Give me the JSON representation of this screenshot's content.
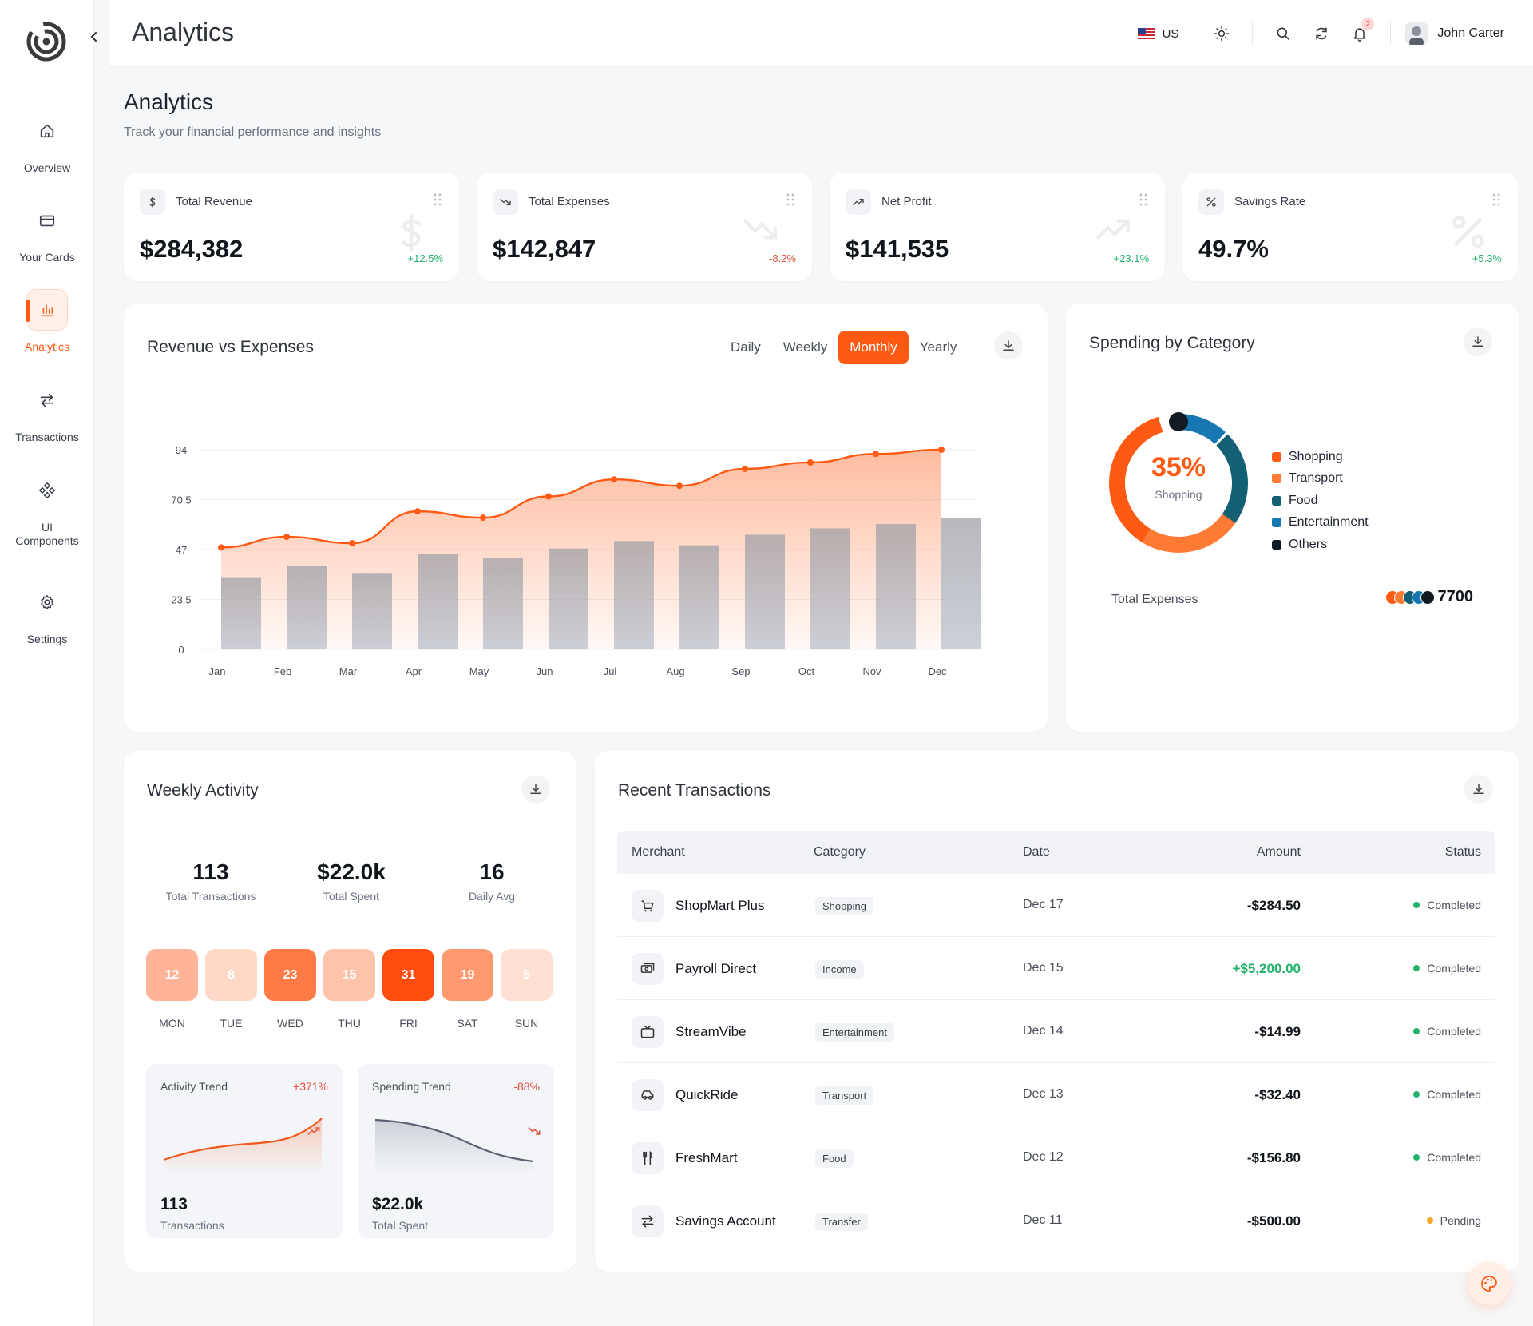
{
  "sidebar": {
    "items": [
      {
        "label": "Overview",
        "icon": "home-icon"
      },
      {
        "label": "Your Cards",
        "icon": "card-icon"
      },
      {
        "label": "Analytics",
        "icon": "bar-chart-icon"
      },
      {
        "label": "Transactions",
        "icon": "swap-icon"
      },
      {
        "label": "UI Components",
        "icon": "components-icon"
      },
      {
        "label": "Settings",
        "icon": "gear-icon"
      }
    ]
  },
  "topbar": {
    "title": "Analytics",
    "language": "US",
    "notifications_count": "2",
    "user_name": "John Carter"
  },
  "page": {
    "title": "Analytics",
    "subtitle": "Track your financial performance and insights"
  },
  "stats": [
    {
      "label": "Total Revenue",
      "value": "$284,382",
      "change": "+12.5%",
      "icon": "$"
    },
    {
      "label": "Total Expenses",
      "value": "$142,847",
      "change": "-8.2%",
      "icon": "trend-down"
    },
    {
      "label": "Net Profit",
      "value": "$141,535",
      "change": "+23.1%",
      "icon": "trend-up"
    },
    {
      "label": "Savings Rate",
      "value": "49.7%",
      "change": "+5.3%",
      "icon": "%"
    }
  ],
  "revenue_chart": {
    "title": "Revenue vs Expenses",
    "tabs": [
      "Daily",
      "Weekly",
      "Monthly",
      "Yearly"
    ],
    "active_tab": "Monthly"
  },
  "chart_data": {
    "type": "bar",
    "title": "Revenue vs Expenses",
    "categories": [
      "Jan",
      "Feb",
      "Mar",
      "Apr",
      "May",
      "Jun",
      "Jul",
      "Aug",
      "Sep",
      "Oct",
      "Nov",
      "Dec"
    ],
    "yticks": [
      "94",
      "70.5",
      "47",
      "23.5",
      "0"
    ],
    "ylim": [
      0,
      94
    ],
    "grid": true,
    "series": [
      {
        "values": [
          48,
          53,
          50,
          65,
          62,
          72,
          80,
          77,
          85,
          88,
          92,
          94
        ],
        "color": "#ff5a14"
      },
      {
        "values": [
          34,
          39.5,
          36,
          45,
          43,
          47.5,
          51,
          49,
          54,
          57,
          59,
          62
        ],
        "color": "#a8abb5"
      }
    ]
  },
  "spending": {
    "title": "Spending by Category",
    "center_value": "35%",
    "center_label": "Shopping",
    "legend": [
      {
        "name": "Shopping",
        "color": "#ff5a14"
      },
      {
        "name": "Transport",
        "color": "#ff7a32"
      },
      {
        "name": "Food",
        "color": "#135f73"
      },
      {
        "name": "Entertainment",
        "color": "#1677b3"
      },
      {
        "name": "Others",
        "color": "#121a22"
      }
    ],
    "total_label": "Total Expenses",
    "total_value": "7700"
  },
  "weekly": {
    "title": "Weekly Activity",
    "stats": [
      {
        "value": "113",
        "label": "Total Transactions"
      },
      {
        "value": "$22.0k",
        "label": "Total Spent"
      },
      {
        "value": "16",
        "label": "Daily Avg"
      }
    ],
    "days": [
      {
        "day": "MON",
        "count": "12",
        "color": "#ffb398"
      },
      {
        "day": "TUE",
        "count": "8",
        "color": "#ffd9c8"
      },
      {
        "day": "WED",
        "count": "23",
        "color": "#ff7b45"
      },
      {
        "day": "THU",
        "count": "15",
        "color": "#ffc3aa"
      },
      {
        "day": "FRI",
        "count": "31",
        "color": "#ff4d0d"
      },
      {
        "day": "SAT",
        "count": "19",
        "color": "#ff9a70"
      },
      {
        "day": "SUN",
        "count": "5",
        "color": "#ffe1d4"
      }
    ],
    "activity_trend": {
      "label": "Activity Trend",
      "change": "+371%",
      "value": "113",
      "sub": "Transactions"
    },
    "spending_trend": {
      "label": "Spending Trend",
      "change": "-88%",
      "value": "$22.0k",
      "sub": "Total Spent"
    }
  },
  "transactions": {
    "title": "Recent Transactions",
    "columns": [
      "Merchant",
      "Category",
      "Date",
      "Amount",
      "Status"
    ],
    "rows": [
      {
        "merchant": "ShopMart Plus",
        "category": "Shopping",
        "date": "Dec 17",
        "amount": "-$284.50",
        "status": "Completed",
        "icon": "cart-icon"
      },
      {
        "merchant": "Payroll Direct",
        "category": "Income",
        "date": "Dec 15",
        "amount": "+$5,200.00",
        "status": "Completed",
        "icon": "cash-icon"
      },
      {
        "merchant": "StreamVibe",
        "category": "Entertainment",
        "date": "Dec 14",
        "amount": "-$14.99",
        "status": "Completed",
        "icon": "tv-icon"
      },
      {
        "merchant": "QuickRide",
        "category": "Transport",
        "date": "Dec 13",
        "amount": "-$32.40",
        "status": "Completed",
        "icon": "car-icon"
      },
      {
        "merchant": "FreshMart",
        "category": "Food",
        "date": "Dec 12",
        "amount": "-$156.80",
        "status": "Completed",
        "icon": "cutlery-icon"
      },
      {
        "merchant": "Savings Account",
        "category": "Transfer",
        "date": "Dec 11",
        "amount": "-$500.00",
        "status": "Pending",
        "icon": "transfer-icon"
      }
    ],
    "status_colors": {
      "Completed": "#22b26b",
      "Pending": "#f5a623"
    },
    "income_color": "#22b26b"
  }
}
